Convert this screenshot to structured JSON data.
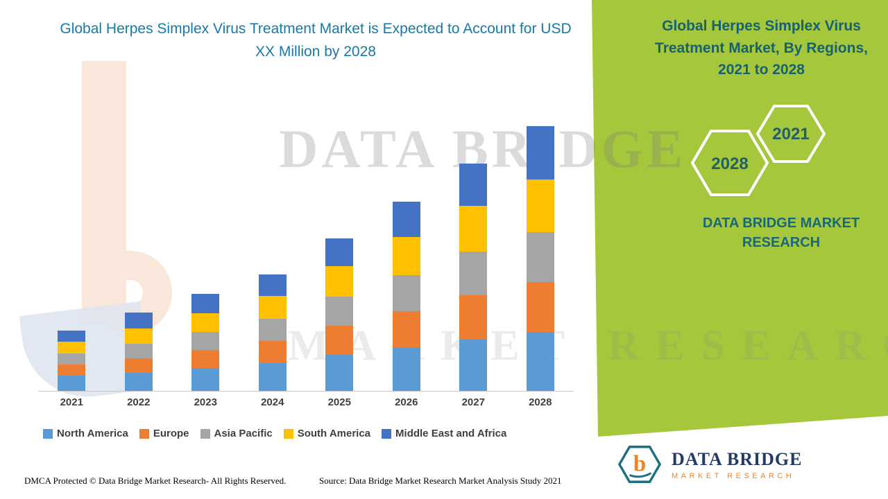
{
  "main": {
    "title": "Global Herpes Simplex Virus Treatment Market is Expected to Account for USD XX Million by 2028",
    "footer_left": "DMCA Protected © Data Bridge Market Research- All Rights Reserved.",
    "footer_source": "Source: Data Bridge Market Research Market Analysis Study 2021"
  },
  "side_panel": {
    "title": "Global Herpes Simplex Virus Treatment Market, By Regions, 2021 to 2028",
    "background_color": "#A4C73C",
    "text_color": "#186170",
    "hexagons": [
      {
        "year": "2028"
      },
      {
        "year": "2021"
      }
    ],
    "brand_text": "DATA BRIDGE MARKET RESEARCH"
  },
  "watermark": {
    "line1": "DATA BRIDGE",
    "line2": "MARKET RESEARCH"
  },
  "logo": {
    "monogram": "b",
    "name": "DATA BRIDGE",
    "subtitle": "MARKET RESEARCH"
  },
  "chart_data": {
    "type": "bar",
    "stacked": true,
    "title": "Global Herpes Simplex Virus Treatment Market is Expected to Account for USD XX Million by 2028",
    "xlabel": "",
    "ylabel": "",
    "grid": false,
    "legend_position": "bottom",
    "ylim": [
      0,
      400
    ],
    "categories": [
      "2021",
      "2022",
      "2023",
      "2024",
      "2025",
      "2026",
      "2027",
      "2028"
    ],
    "series": [
      {
        "name": "North America",
        "color": "#5B9BD5",
        "values": [
          22,
          26,
          33,
          40,
          52,
          63,
          75,
          85
        ]
      },
      {
        "name": "Europe",
        "color": "#ED7D31",
        "values": [
          16,
          21,
          26,
          32,
          42,
          52,
          63,
          72
        ]
      },
      {
        "name": "Asia Pacific",
        "color": "#A5A5A5",
        "values": [
          16,
          21,
          26,
          32,
          42,
          52,
          63,
          72
        ]
      },
      {
        "name": "South America",
        "color": "#FFC000",
        "values": [
          17,
          22,
          27,
          33,
          44,
          55,
          66,
          76
        ]
      },
      {
        "name": "Middle East and Africa",
        "color": "#4472C4",
        "values": [
          16,
          23,
          28,
          31,
          40,
          51,
          61,
          77
        ]
      }
    ]
  }
}
